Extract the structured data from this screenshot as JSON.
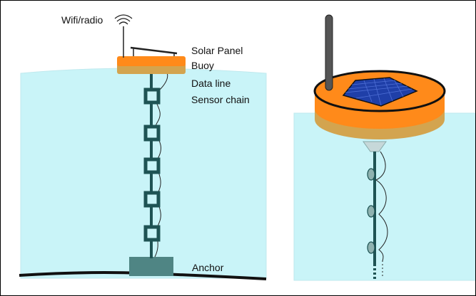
{
  "labels": {
    "wifi": "Wifi/radio",
    "solar": "Solar Panel",
    "buoy": "Buoy",
    "dataline": "Data line",
    "sensorchain": "Sensor chain",
    "anchor": "Anchor"
  },
  "colors": {
    "water": "#c9f4f8",
    "water_edge": "#bfe9ee",
    "buoy_top": "#ff8a1a",
    "buoy_side": "#d3a44f",
    "chain": "#1e5354",
    "anchor": "#4f8584",
    "seabed": "#111111",
    "antenna": "#555555",
    "solar": "#1f3fa8",
    "sensor": "#8fb2b0"
  }
}
